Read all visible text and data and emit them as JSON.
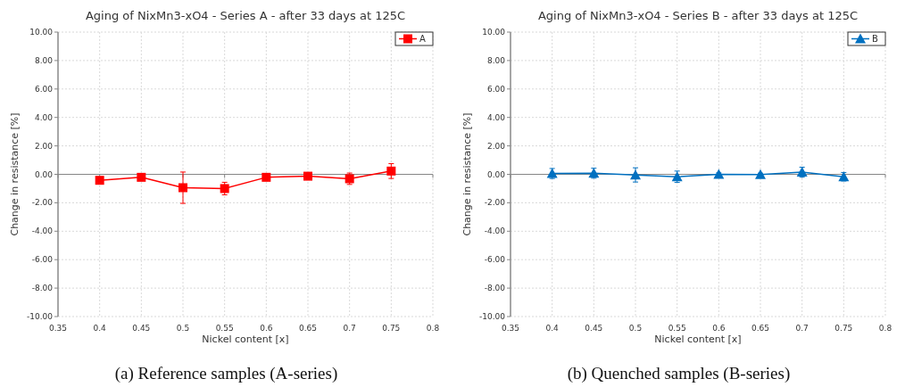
{
  "chart_data": [
    {
      "type": "line",
      "title": "Aging of NixMn3-xO4 - Series  A - after 33 days at 125C",
      "xlabel": "Nickel content [x]",
      "ylabel": "Change in resistance [%]",
      "x": [
        0.4,
        0.45,
        0.5,
        0.55,
        0.6,
        0.65,
        0.7,
        0.75
      ],
      "series": [
        {
          "name": "A",
          "color": "#ff0000",
          "values": [
            -0.42,
            -0.21,
            -0.94,
            -1.0,
            -0.21,
            -0.13,
            -0.31,
            0.23
          ],
          "errors": [
            0.1,
            0.15,
            1.1,
            0.44,
            0.2,
            0.25,
            0.4,
            0.52
          ]
        }
      ],
      "xlim": [
        0.35,
        0.8
      ],
      "xticks": [
        0.35,
        0.4,
        0.45,
        0.5,
        0.55,
        0.6,
        0.65,
        0.7,
        0.75,
        0.8
      ],
      "ylim": [
        -10,
        10
      ],
      "yticks": [
        {
          "value": -10,
          "label": "-10.00"
        },
        {
          "value": -8,
          "label": "-8.00"
        },
        {
          "value": -6,
          "label": "-6.00"
        },
        {
          "value": -4,
          "label": "-4.00"
        },
        {
          "value": -2,
          "label": "-2.00"
        },
        {
          "value": 0,
          "label": "0.00"
        },
        {
          "value": 2,
          "label": "2.00"
        },
        {
          "value": 4,
          "label": "4.00"
        },
        {
          "value": 6,
          "label": "6.00"
        },
        {
          "value": 8,
          "label": "8.00"
        },
        {
          "value": 10,
          "label": "10.00"
        }
      ],
      "grid": true,
      "legend": "top right",
      "marker": "square",
      "annotations": [
        "(a) Reference samples (A-series)"
      ]
    },
    {
      "type": "line",
      "title": "Aging of NixMn3-xO4 - Series B - after 33 days at 125C",
      "xlabel": "Nickel content [x]",
      "ylabel": "Change in resistance [%]",
      "x": [
        0.4,
        0.45,
        0.5,
        0.55,
        0.6,
        0.65,
        0.7,
        0.75
      ],
      "series": [
        {
          "name": "B",
          "color": "#0070c0",
          "values": [
            0.06,
            0.08,
            -0.04,
            -0.17,
            0.0,
            -0.02,
            0.15,
            -0.17
          ],
          "errors": [
            0.35,
            0.35,
            0.5,
            0.4,
            0.1,
            0.1,
            0.35,
            0.3
          ]
        }
      ],
      "xlim": [
        0.35,
        0.8
      ],
      "xticks": [
        0.35,
        0.4,
        0.45,
        0.5,
        0.55,
        0.6,
        0.65,
        0.7,
        0.75,
        0.8
      ],
      "ylim": [
        -10,
        10
      ],
      "yticks": [
        {
          "value": -10,
          "label": "-10.00"
        },
        {
          "value": -8,
          "label": "-8.00"
        },
        {
          "value": -6,
          "label": "-6.00"
        },
        {
          "value": -4,
          "label": "-4.00"
        },
        {
          "value": -2,
          "label": "-2.00"
        },
        {
          "value": 0,
          "label": "0.00"
        },
        {
          "value": 2,
          "label": "2.00"
        },
        {
          "value": 4,
          "label": "4.00"
        },
        {
          "value": 6,
          "label": "6.00"
        },
        {
          "value": 8,
          "label": "8.00"
        },
        {
          "value": 10,
          "label": "10.00"
        }
      ],
      "grid": true,
      "legend": "top right",
      "marker": "triangle",
      "annotations": [
        "(b) Quenched samples (B-series)"
      ]
    }
  ]
}
